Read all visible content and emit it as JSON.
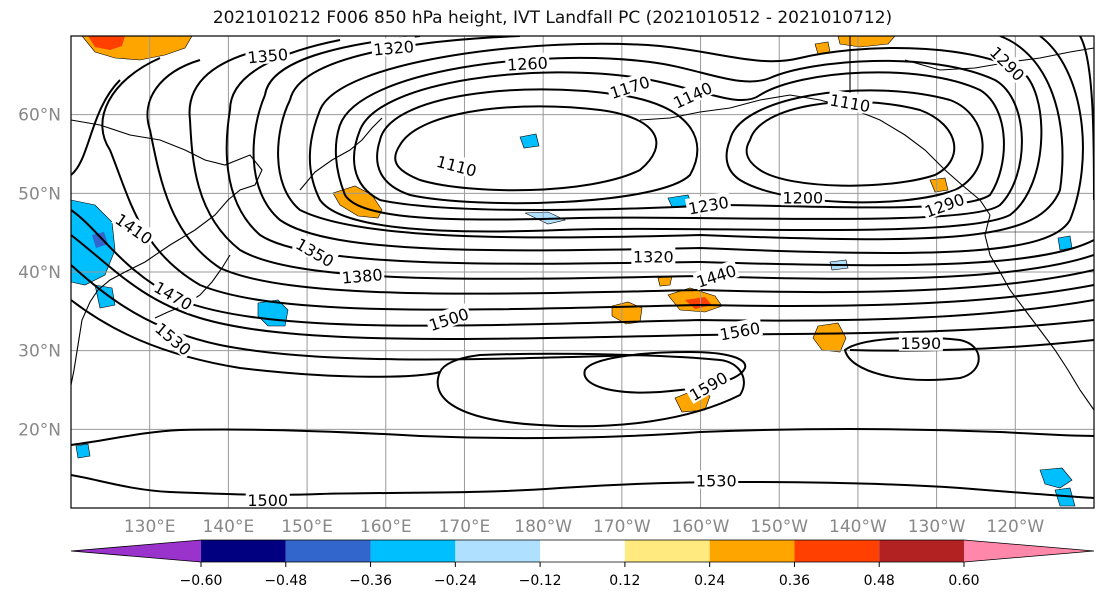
{
  "title": "2021010212 F006 850 hPa height, IVT Landfall PC (2021010512 - 2021010712)",
  "map": {
    "lon_range": [
      120,
      250
    ],
    "lat_range": [
      10,
      70
    ],
    "lat_ticks": [
      {
        "value": 20,
        "label": "20°N"
      },
      {
        "value": 30,
        "label": "30°N"
      },
      {
        "value": 40,
        "label": "40°N"
      },
      {
        "value": 50,
        "label": "50°N"
      },
      {
        "value": 60,
        "label": "60°N"
      }
    ],
    "lon_ticks": [
      {
        "value": 130,
        "label": "130°E"
      },
      {
        "value": 140,
        "label": "140°E"
      },
      {
        "value": 150,
        "label": "150°E"
      },
      {
        "value": 160,
        "label": "160°E"
      },
      {
        "value": 170,
        "label": "170°E"
      },
      {
        "value": 180,
        "label": "180°W"
      },
      {
        "value": 190,
        "label": "170°W"
      },
      {
        "value": 200,
        "label": "160°W"
      },
      {
        "value": 210,
        "label": "150°W"
      },
      {
        "value": 220,
        "label": "140°W"
      },
      {
        "value": 230,
        "label": "130°W"
      },
      {
        "value": 240,
        "label": "120°W"
      }
    ],
    "contour_labels": [
      {
        "text": "1350",
        "lon": 145,
        "lat": 67.5,
        "rot": -5
      },
      {
        "text": "1320",
        "lon": 161,
        "lat": 68.5,
        "rot": -5
      },
      {
        "text": "1260",
        "lon": 178,
        "lat": 66.5,
        "rot": -3
      },
      {
        "text": "1170",
        "lon": 191,
        "lat": 63.5,
        "rot": -18
      },
      {
        "text": "1140",
        "lon": 199,
        "lat": 62.5,
        "rot": -25
      },
      {
        "text": "1110",
        "lon": 219,
        "lat": 61.5,
        "rot": 10
      },
      {
        "text": "1290",
        "lon": 239,
        "lat": 66.5,
        "rot": 45
      },
      {
        "text": "1110",
        "lon": 169,
        "lat": 53.5,
        "rot": 15
      },
      {
        "text": "1230",
        "lon": 201,
        "lat": 48.5,
        "rot": -10
      },
      {
        "text": "1200",
        "lon": 213,
        "lat": 49.5,
        "rot": 0
      },
      {
        "text": "1290",
        "lon": 231,
        "lat": 48.5,
        "rot": -20
      },
      {
        "text": "1410",
        "lon": 128,
        "lat": 45.5,
        "rot": 35
      },
      {
        "text": "1350",
        "lon": 151,
        "lat": 42.5,
        "rot": 30
      },
      {
        "text": "1380",
        "lon": 157,
        "lat": 39.5,
        "rot": -5
      },
      {
        "text": "1320",
        "lon": 194,
        "lat": 42.0,
        "rot": 0
      },
      {
        "text": "1440",
        "lon": 202,
        "lat": 39.5,
        "rot": -18
      },
      {
        "text": "1470",
        "lon": 133,
        "lat": 37.0,
        "rot": 30
      },
      {
        "text": "1530",
        "lon": 133,
        "lat": 31.5,
        "rot": 40
      },
      {
        "text": "1500",
        "lon": 168,
        "lat": 34.0,
        "rot": -18
      },
      {
        "text": "1560",
        "lon": 205,
        "lat": 32.5,
        "rot": -10
      },
      {
        "text": "1590",
        "lon": 228,
        "lat": 31.0,
        "rot": 0
      },
      {
        "text": "1590",
        "lon": 201,
        "lat": 25.5,
        "rot": -30
      },
      {
        "text": "1530",
        "lon": 202,
        "lat": 13.5,
        "rot": 0
      },
      {
        "text": "1500",
        "lon": 145,
        "lat": 11.0,
        "rot": 0
      }
    ]
  },
  "colorbar": {
    "colors": [
      "#9933cc",
      "#000080",
      "#3366cc",
      "#00bfff",
      "#b0e0ff",
      "#ffffff",
      "#ffea80",
      "#ffa500",
      "#ff4000",
      "#b22222",
      "#ff88aa"
    ],
    "tick_labels": [
      "-0.60",
      "-0.48",
      "-0.36",
      "-0.24",
      "-0.12",
      "0.12",
      "0.24",
      "0.36",
      "0.48",
      "0.60"
    ]
  }
}
